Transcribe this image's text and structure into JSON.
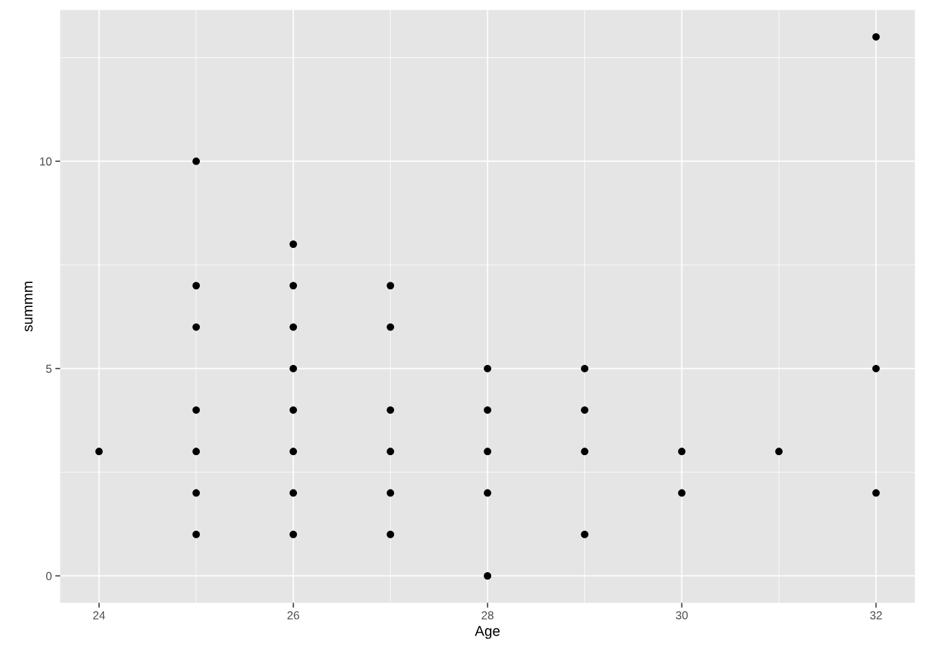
{
  "chart_data": {
    "type": "scatter",
    "xlabel": "Age",
    "ylabel": "summm",
    "x": [
      24,
      25,
      25,
      25,
      25,
      25,
      25,
      25,
      26,
      26,
      26,
      26,
      26,
      26,
      26,
      26,
      27,
      27,
      27,
      27,
      27,
      27,
      28,
      28,
      28,
      28,
      28,
      29,
      29,
      29,
      29,
      30,
      30,
      31,
      32,
      32,
      32
    ],
    "values": [
      3,
      10,
      7,
      6,
      4,
      3,
      2,
      1,
      8,
      7,
      6,
      5,
      4,
      3,
      2,
      1,
      7,
      6,
      4,
      3,
      2,
      1,
      5,
      4,
      3,
      2,
      0,
      5,
      4,
      3,
      1,
      3,
      2,
      3,
      13,
      5,
      2
    ],
    "color": "#000000",
    "marker": "circle",
    "xlim": [
      23.6,
      32.4
    ],
    "ylim": [
      -0.65,
      13.65
    ],
    "xticks": [
      24,
      26,
      28,
      30,
      32
    ],
    "yticks": [
      0,
      5,
      10
    ],
    "grid": true
  }
}
